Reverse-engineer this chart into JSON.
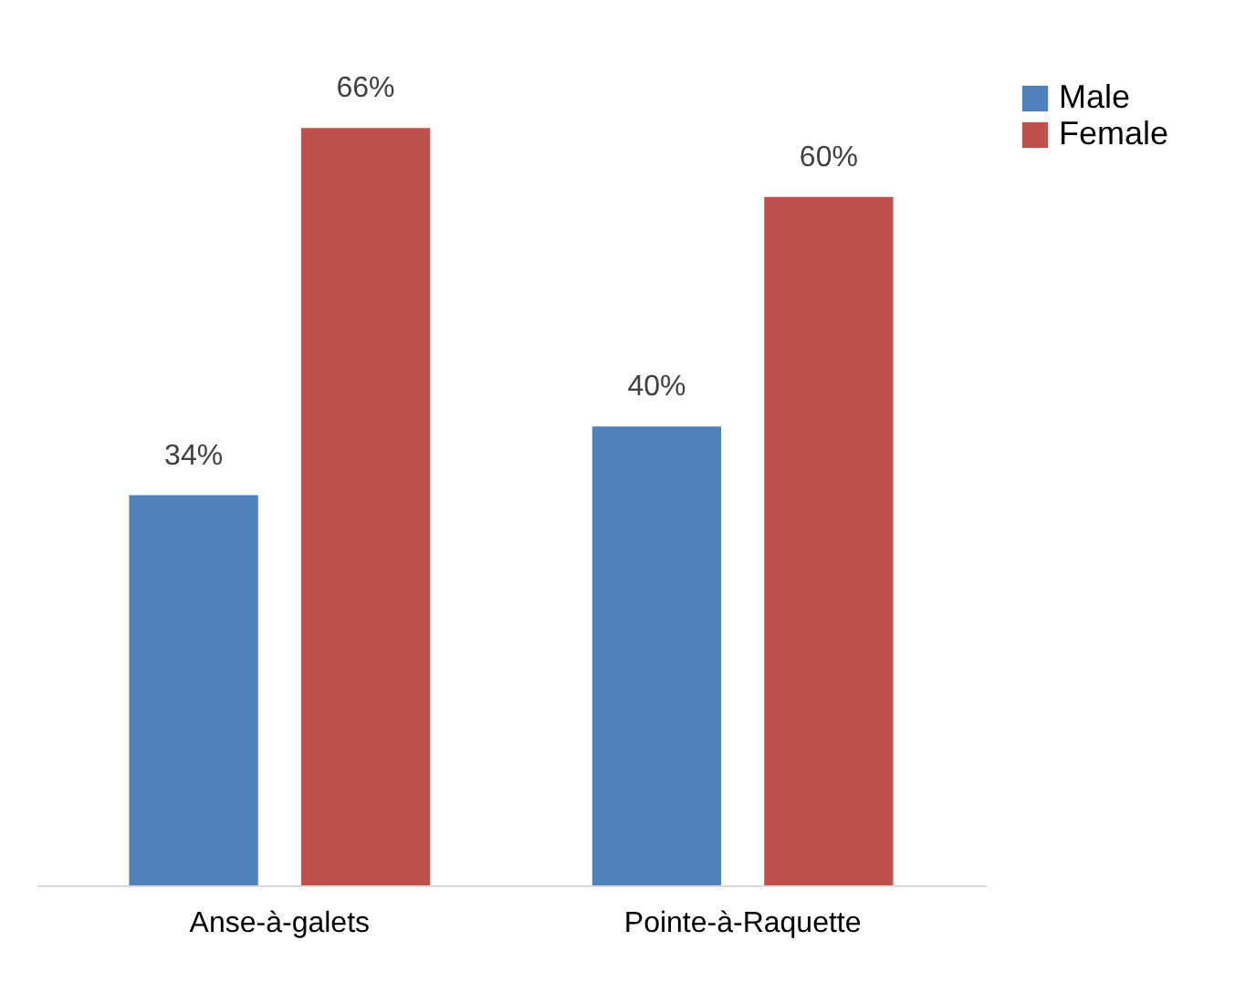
{
  "chart_data": {
    "type": "bar",
    "categories": [
      "Anse-à-galets",
      "Pointe-à-Raquette"
    ],
    "series": [
      {
        "name": "Male",
        "color": "#4f81bd",
        "values": [
          34,
          40
        ],
        "value_labels": [
          "34%",
          "40%"
        ]
      },
      {
        "name": "Female",
        "color": "#c0504d",
        "values": [
          66,
          60
        ],
        "value_labels": [
          "66%",
          "60%"
        ]
      }
    ],
    "legend": "right",
    "grid": false
  }
}
